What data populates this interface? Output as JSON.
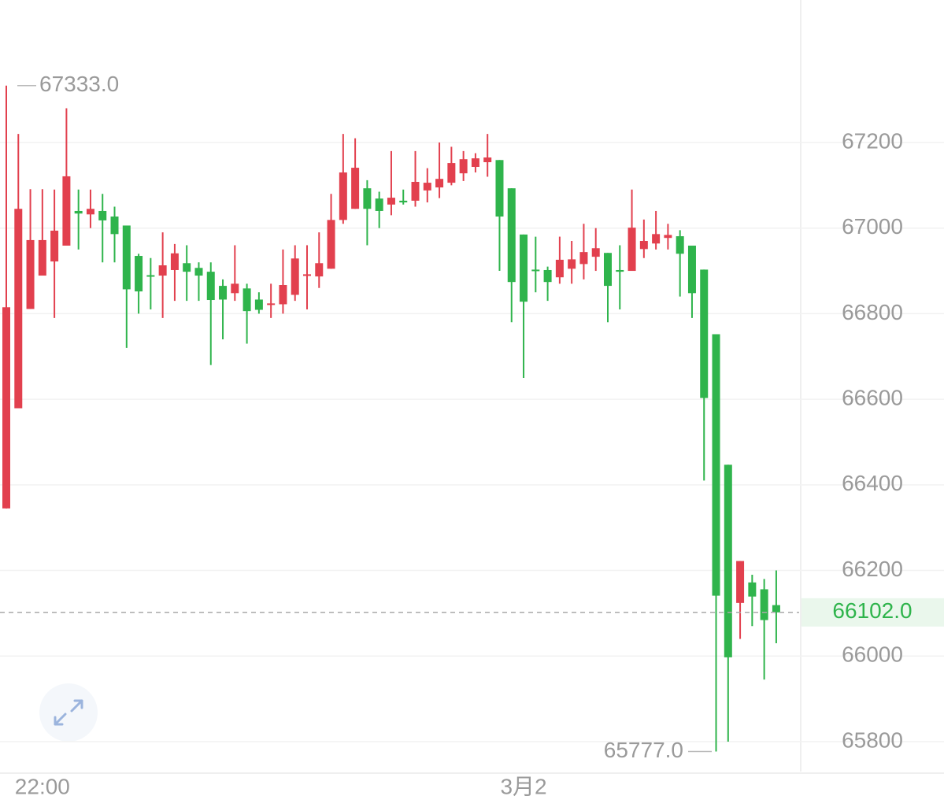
{
  "chart_data": {
    "type": "candlestick",
    "categories": [
      null,
      null,
      null,
      "22:00",
      null,
      null,
      null,
      null,
      null,
      null,
      null,
      null,
      null,
      null,
      null,
      null,
      null,
      null,
      null,
      null,
      null,
      null,
      null,
      null,
      null,
      null,
      null,
      null,
      null,
      null,
      null,
      null,
      null,
      null,
      null,
      null,
      null,
      null,
      null,
      null,
      null,
      null,
      null,
      "3月2",
      null,
      null,
      null,
      null,
      null,
      null,
      null,
      null,
      null,
      null,
      null,
      null,
      null,
      null,
      null,
      null,
      null,
      null,
      null,
      null,
      null
    ],
    "open": [
      66345,
      66579,
      66811,
      66889,
      66922,
      66959,
      67040,
      67032,
      67040,
      67027,
      67006,
      66935,
      66890,
      66889,
      66902,
      66918,
      66907,
      66898,
      66865,
      66848,
      66859,
      66833,
      66822,
      66822,
      66844,
      66890,
      66887,
      66905,
      67019,
      67045,
      67093,
      67069,
      67055,
      67064,
      67064,
      67088,
      67095,
      67106,
      67128,
      67143,
      67154,
      67159,
      67093,
      66985,
      66903,
      66902,
      66885,
      66905,
      66916,
      66933,
      66942,
      66902,
      66900,
      66951,
      66964,
      66977,
      66981,
      66959,
      66903,
      66752,
      66447,
      66124,
      66172,
      66156,
      66119
    ],
    "high": [
      67333,
      67220,
      67091,
      67091,
      67090,
      67280,
      67090,
      67090,
      67080,
      67050,
      67006,
      66940,
      66930,
      66990,
      66963,
      66960,
      66920,
      66920,
      66880,
      66960,
      66870,
      66850,
      66870,
      66950,
      66960,
      66960,
      66990,
      67080,
      67220,
      67210,
      67112,
      67085,
      67180,
      67090,
      67180,
      67140,
      67200,
      67190,
      67180,
      67175,
      67220,
      67159,
      67093,
      66985,
      66980,
      66910,
      66980,
      66970,
      67010,
      67000,
      66942,
      66960,
      67090,
      67020,
      67040,
      67010,
      66995,
      66959,
      66903,
      66752,
      66447,
      66222,
      66190,
      66180,
      66200
    ],
    "low": [
      66345,
      66579,
      66811,
      66889,
      66790,
      66959,
      66950,
      67000,
      66920,
      66920,
      66720,
      66800,
      66810,
      66790,
      66830,
      66830,
      66830,
      66680,
      66740,
      66830,
      66730,
      66800,
      66790,
      66800,
      66830,
      66810,
      66860,
      66905,
      67010,
      67045,
      66960,
      67000,
      67030,
      67055,
      67050,
      67060,
      67070,
      67100,
      67110,
      67130,
      67120,
      66900,
      66780,
      66650,
      66850,
      66830,
      66870,
      66870,
      66880,
      66900,
      66780,
      66810,
      66900,
      66930,
      66950,
      66950,
      66840,
      66790,
      66410,
      65777,
      65800,
      66040,
      66070,
      65945,
      66030
    ],
    "close": [
      66815,
      67045,
      66972,
      66972,
      66994,
      67121,
      67034,
      67045,
      67018,
      66986,
      66857,
      66852,
      66887,
      66913,
      66941,
      66898,
      66889,
      66832,
      66833,
      66870,
      66806,
      66809,
      66824,
      66867,
      66929,
      66892,
      66918,
      67019,
      67130,
      67141,
      67045,
      67040,
      67071,
      67060,
      67108,
      67106,
      67115,
      67152,
      67161,
      67163,
      67165,
      67027,
      66874,
      66828,
      66900,
      66874,
      66926,
      66927,
      66944,
      66953,
      66865,
      66898,
      67001,
      66970,
      66986,
      66984,
      66940,
      66848,
      66603,
      66141,
      65997,
      66222,
      66139,
      66084,
      66102
    ],
    "up_color": "#e2404e",
    "down_color": "#2fb44c",
    "ylim": [
      65730,
      67533
    ],
    "yticks": [
      65800,
      66000,
      66200,
      66400,
      66600,
      66800,
      67000,
      67200
    ],
    "grid": true,
    "max_label": {
      "value": 67333,
      "label": "67333.0"
    },
    "min_label": {
      "value": 65777,
      "label": "65777.0"
    },
    "last_price": {
      "value": 66102,
      "label": "66102.0"
    }
  }
}
